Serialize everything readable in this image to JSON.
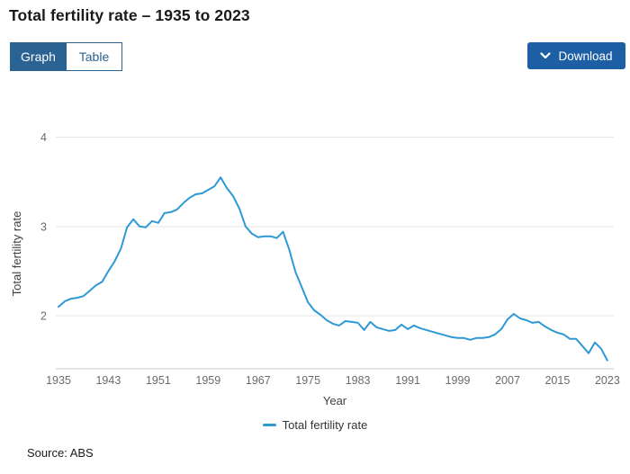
{
  "page": {
    "title": "Total fertility rate – 1935 to 2023",
    "source": "Source: ABS"
  },
  "toolbar": {
    "graph_label": "Graph",
    "table_label": "Table",
    "download_label": "Download"
  },
  "colors": {
    "toggle_blue": "#2a6294",
    "download_blue": "#1d5fa5",
    "line_blue": "#2f99d6",
    "gridline": "#e6e6e6",
    "tick_text": "#6b6b6b"
  },
  "chart_data": {
    "type": "line",
    "title": "",
    "xlabel": "Year",
    "ylabel": "Total fertility rate",
    "legend": [
      "Total fertility rate"
    ],
    "legend_position": "bottom",
    "grid": true,
    "x_ticks": [
      1935,
      1943,
      1951,
      1959,
      1967,
      1975,
      1983,
      1991,
      1999,
      2007,
      2015,
      2023
    ],
    "y_ticks": [
      2,
      3,
      4
    ],
    "xlim": [
      1934.6,
      2024
    ],
    "ylim": [
      1.4,
      4.25
    ],
    "x": [
      1935,
      1936,
      1937,
      1938,
      1939,
      1940,
      1941,
      1942,
      1943,
      1944,
      1945,
      1946,
      1947,
      1948,
      1949,
      1950,
      1951,
      1952,
      1953,
      1954,
      1955,
      1956,
      1957,
      1958,
      1959,
      1960,
      1961,
      1962,
      1963,
      1964,
      1965,
      1966,
      1967,
      1968,
      1969,
      1970,
      1971,
      1972,
      1973,
      1974,
      1975,
      1976,
      1977,
      1978,
      1979,
      1980,
      1981,
      1982,
      1983,
      1984,
      1985,
      1986,
      1987,
      1988,
      1989,
      1990,
      1991,
      1992,
      1993,
      1994,
      1995,
      1996,
      1997,
      1998,
      1999,
      2000,
      2001,
      2002,
      2003,
      2004,
      2005,
      2006,
      2007,
      2008,
      2009,
      2010,
      2011,
      2012,
      2013,
      2014,
      2015,
      2016,
      2017,
      2018,
      2019,
      2020,
      2021,
      2022,
      2023
    ],
    "series": [
      {
        "name": "Total fertility rate",
        "values": [
          2.1,
          2.16,
          2.19,
          2.2,
          2.22,
          2.28,
          2.34,
          2.38,
          2.5,
          2.61,
          2.75,
          2.99,
          3.08,
          3.0,
          2.99,
          3.06,
          3.04,
          3.15,
          3.16,
          3.19,
          3.26,
          3.32,
          3.36,
          3.37,
          3.41,
          3.45,
          3.55,
          3.43,
          3.34,
          3.2,
          3.0,
          2.92,
          2.88,
          2.89,
          2.89,
          2.87,
          2.94,
          2.74,
          2.49,
          2.32,
          2.15,
          2.06,
          2.01,
          1.95,
          1.91,
          1.89,
          1.94,
          1.93,
          1.92,
          1.84,
          1.93,
          1.87,
          1.85,
          1.83,
          1.84,
          1.9,
          1.85,
          1.89,
          1.86,
          1.84,
          1.82,
          1.8,
          1.78,
          1.76,
          1.75,
          1.75,
          1.73,
          1.75,
          1.75,
          1.76,
          1.79,
          1.85,
          1.96,
          2.02,
          1.97,
          1.95,
          1.92,
          1.93,
          1.88,
          1.84,
          1.81,
          1.79,
          1.74,
          1.74,
          1.66,
          1.58,
          1.7,
          1.63,
          1.5
        ]
      }
    ]
  }
}
